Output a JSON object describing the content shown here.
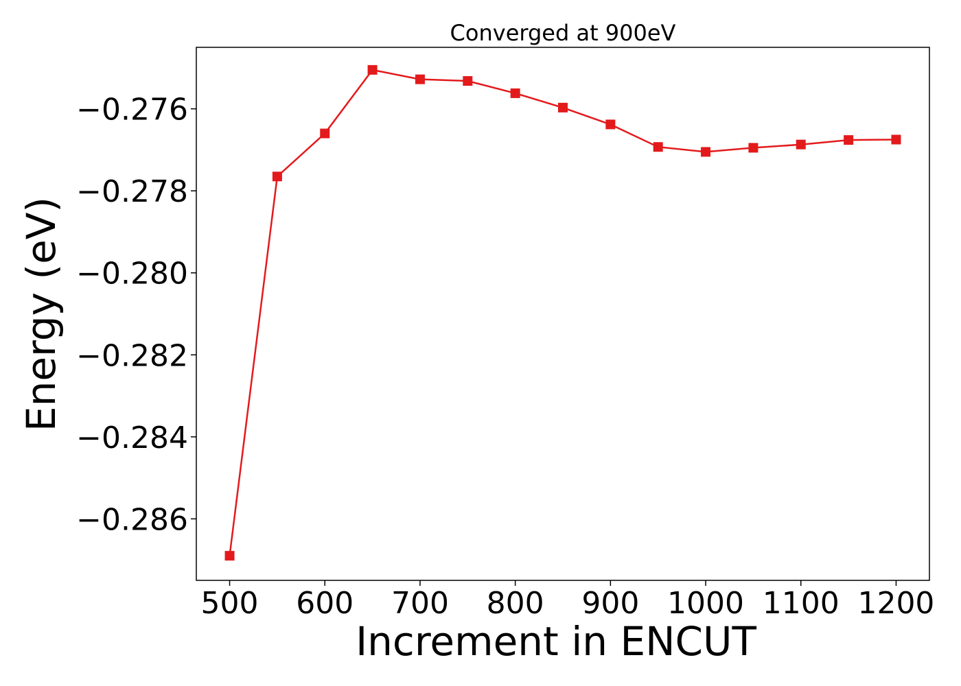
{
  "chart_data": {
    "type": "line",
    "title": "Converged at 900eV",
    "xlabel": "Increment in ENCUT",
    "ylabel": "Energy (eV)",
    "xlim": [
      465,
      1235
    ],
    "ylim": [
      -0.2875,
      -0.2745
    ],
    "xticks": [
      500,
      600,
      700,
      800,
      900,
      1000,
      1100,
      1200
    ],
    "xtick_labels": [
      "500",
      "600",
      "700",
      "800",
      "900",
      "1000",
      "1100",
      "1200"
    ],
    "yticks": [
      -0.276,
      -0.278,
      -0.28,
      -0.282,
      -0.284,
      -0.286
    ],
    "ytick_labels": [
      "−0.276",
      "−0.278",
      "−0.280",
      "−0.282",
      "−0.284",
      "−0.286"
    ],
    "grid": false,
    "series": [
      {
        "color": "#e31a1c",
        "marker": "square",
        "x": [
          500,
          550,
          600,
          650,
          700,
          750,
          800,
          850,
          900,
          950,
          1000,
          1050,
          1100,
          1150,
          1200
        ],
        "y": [
          -0.2869,
          -0.27765,
          -0.2766,
          -0.27505,
          -0.27528,
          -0.27532,
          -0.27562,
          -0.27597,
          -0.27638,
          -0.27693,
          -0.27705,
          -0.27695,
          -0.27687,
          -0.27676,
          -0.27675
        ]
      }
    ]
  }
}
